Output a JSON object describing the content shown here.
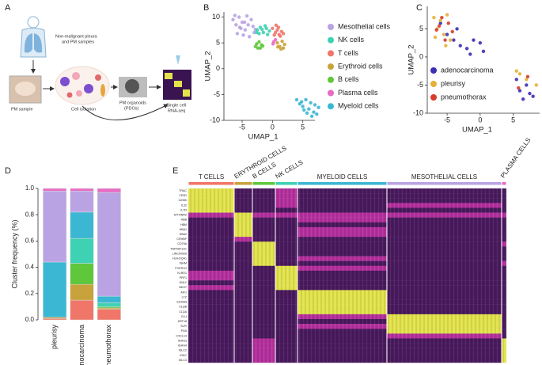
{
  "panel_labels": [
    "A",
    "B",
    "C",
    "D",
    "E"
  ],
  "schematic": {
    "source": [
      "Non-malignant pleura",
      "and PM samples"
    ],
    "sample": "PM sample",
    "isolation": "Cell isolation",
    "organoids": [
      "PM organoids",
      "(PDOs)"
    ],
    "sequencing": [
      "Single cell",
      "RNA-seq"
    ]
  },
  "chart_data": [
    {
      "type": "scatter",
      "x_label": "UMAP_1",
      "y_label": "UMAP_2",
      "xlim": [
        -8,
        7
      ],
      "ylim": [
        -10,
        11
      ],
      "xticks": [
        -5,
        0,
        5
      ],
      "yticks": [
        -10,
        -5,
        0,
        5,
        10
      ],
      "legend": "right",
      "series": [
        {
          "name": "Mesothelial cells",
          "color": "#b9a3e3",
          "x": [
            -6.5,
            -6,
            -5.5,
            -5,
            -4.5,
            -4,
            -3.5,
            -3,
            -5.8,
            -4.8,
            -4.2,
            -3.2,
            -5.2,
            -6.2,
            -2.8,
            -3.8,
            -4.6,
            -5.4
          ],
          "y": [
            9.5,
            8.5,
            10,
            9,
            7.5,
            8.5,
            9.5,
            7,
            6.8,
            6.5,
            10.2,
            8.2,
            7.8,
            10.3,
            7.6,
            6.2,
            9,
            8
          ]
        },
        {
          "name": "NK cells",
          "color": "#3fd1b3",
          "x": [
            -2.5,
            -2,
            -1.5,
            -1,
            -0.5,
            -2.2,
            -1.2,
            -0.8,
            -1.7,
            -2.6
          ],
          "y": [
            7.5,
            8,
            7,
            7.8,
            7.3,
            6.8,
            8.3,
            6.6,
            7.6,
            7
          ]
        },
        {
          "name": "T cells",
          "color": "#f0766a",
          "x": [
            0,
            0.5,
            1,
            1.5,
            0.3,
            0.8,
            1.3,
            1.8,
            0.6,
            1.1
          ],
          "y": [
            7.8,
            7,
            8,
            7.2,
            6.5,
            7.5,
            6.3,
            6.8,
            8.4,
            6.6
          ]
        },
        {
          "name": "Erythroid cells",
          "color": "#c8a23a",
          "x": [
            0.8,
            1.2,
            1.6,
            2,
            1.4,
            0.9,
            1.8
          ],
          "y": [
            5,
            4.3,
            5.3,
            4.7,
            3.8,
            4.2,
            4
          ]
        },
        {
          "name": "B cells",
          "color": "#5ec73c",
          "x": [
            -2.6,
            -2.2,
            -1.8,
            -2.4,
            -2,
            -1.6,
            -2.8
          ],
          "y": [
            4.8,
            5.2,
            4.6,
            4,
            4,
            4.4,
            4.3
          ]
        },
        {
          "name": "Plasma cells",
          "color": "#e86bc4",
          "x": [
            0.2,
            0.5,
            0.1
          ],
          "y": [
            5.2,
            5.6,
            4.8
          ]
        },
        {
          "name": "Myeloid cells",
          "color": "#3bb7d4",
          "x": [
            4,
            4.8,
            5.5,
            6.3,
            7,
            7.6,
            5,
            6,
            6.8,
            4.5,
            5.7,
            7.3,
            6.5,
            5.2
          ],
          "y": [
            -6,
            -6.4,
            -6,
            -6.6,
            -7,
            -7.5,
            -7.3,
            -7.8,
            -8.4,
            -6.8,
            -8.6,
            -8.8,
            -9.2,
            -8
          ]
        }
      ]
    },
    {
      "type": "scatter",
      "x_label": "UMAP_1",
      "y_label": "UMAP_2",
      "xlim": [
        -8,
        9
      ],
      "ylim": [
        -10,
        9
      ],
      "xticks": [
        -5,
        0,
        5
      ],
      "yticks": [
        -10,
        -5,
        0,
        5
      ],
      "legend": "lower left",
      "series": [
        {
          "name": "adenocarcinoma",
          "color": "#3b2fb3",
          "x": [
            -5,
            -4,
            -3,
            -2,
            -1,
            0,
            0.5,
            -1.5,
            -3.5,
            -6,
            6,
            7,
            8,
            6.5,
            7.5,
            5.5
          ],
          "y": [
            4,
            3,
            2,
            1.5,
            3,
            2.5,
            1,
            0.5,
            5,
            6,
            -6,
            -5,
            -7,
            -7.5,
            -6.5,
            -4
          ]
        },
        {
          "name": "pleurisy",
          "color": "#e5b03a",
          "x": [
            -7,
            -6.5,
            -6,
            -5.5,
            -5,
            -4.5,
            -6.8,
            -5.2,
            6,
            7,
            8.5,
            5.5
          ],
          "y": [
            7,
            5,
            6.5,
            4,
            7.5,
            3,
            3.5,
            2,
            -3,
            -4,
            -5,
            -2.5
          ]
        },
        {
          "name": "pneumothorax",
          "color": "#d93a2a",
          "x": [
            -6.2,
            -5.8,
            -4.8,
            -4.2,
            -6.6,
            -5.3,
            5.8,
            7.2
          ],
          "y": [
            5.5,
            7,
            6,
            4.5,
            4.8,
            3,
            -5.5,
            -3.5
          ]
        }
      ]
    },
    {
      "type": "stacked_bar",
      "y_label": "Cluster frequency (%)",
      "categories": [
        "pleurisy",
        "adenocarcinoma",
        "pneumothorax"
      ],
      "ylim": [
        0,
        1
      ],
      "yticks": [
        {
          "value": 0,
          "label": "0.0"
        },
        0.2,
        0.4,
        0.6,
        0.8,
        {
          "value": 1,
          "label": "1.0"
        }
      ],
      "series": [
        {
          "color": "#f0766a",
          "values": [
            0.01,
            0.15,
            0.08
          ]
        },
        {
          "color": "#c8a23a",
          "values": [
            0.01,
            0.12,
            0.01
          ]
        },
        {
          "color": "#5ec73c",
          "values": [
            0,
            0.16,
            0.01
          ]
        },
        {
          "color": "#3fd1b3",
          "values": [
            0,
            0.19,
            0.03
          ]
        },
        {
          "color": "#3bb7d4",
          "values": [
            0.42,
            0.2,
            0.05
          ]
        },
        {
          "color": "#b9a3e3",
          "values": [
            0.54,
            0.16,
            0.79
          ]
        },
        {
          "color": "#e86bc4",
          "values": [
            0.02,
            0.02,
            0.03
          ]
        }
      ]
    },
    {
      "type": "heatmap",
      "groups": [
        {
          "name": "T CELLS",
          "color": "#f0766a"
        },
        {
          "name": "ERYTHROID CELLS",
          "color": "#c8a23a"
        },
        {
          "name": "B CELLS",
          "color": "#5ec73c"
        },
        {
          "name": "NK CELLS",
          "color": "#3fd1b3"
        },
        {
          "name": "MYELOID CELLS",
          "color": "#3bb7d4"
        },
        {
          "name": "MESOTHELIAL CELLS",
          "color": "#b9a3e3"
        },
        {
          "name": "PLASMA CELLS",
          "color": "#e86bc4"
        }
      ],
      "genes": [
        "TRAC",
        "CD3D",
        "GZMK",
        "IL32",
        "IL7R",
        "MT-RNR2",
        "HBB",
        "HBM",
        "HBA1",
        "HBA2",
        "CRHBP",
        "CD79A",
        "TNFRSF13C",
        "LINC00926",
        "HLA-DQA1",
        "IGHM",
        "FCER1G",
        "KLRD1",
        "PRF1",
        "GNLY",
        "NKG7",
        "AIF1",
        "LYZ",
        "S100A9",
        "C1QB",
        "C1QA",
        "CLU",
        "KRT18",
        "SLPI",
        "PI16",
        "CXCL14",
        "IGHG3",
        "IGHG4",
        "IGLC2",
        "IGKC",
        "IGLC3"
      ],
      "colors": [
        "#4a1a5e",
        "#b5309e",
        "#e3e34d"
      ],
      "values": [
        [
          2,
          0,
          0,
          1,
          0,
          0,
          0
        ],
        [
          2,
          0,
          0,
          1,
          0,
          0,
          0
        ],
        [
          2,
          0,
          0,
          1,
          0,
          0,
          0
        ],
        [
          2,
          0,
          0,
          1,
          0,
          1,
          0
        ],
        [
          2,
          0,
          0,
          0,
          0,
          0,
          0
        ],
        [
          1,
          2,
          1,
          1,
          1,
          1,
          1
        ],
        [
          0,
          2,
          0,
          0,
          1,
          0,
          0
        ],
        [
          0,
          2,
          0,
          0,
          0,
          0,
          0
        ],
        [
          0,
          2,
          0,
          0,
          1,
          0,
          0
        ],
        [
          0,
          2,
          0,
          0,
          1,
          0,
          0
        ],
        [
          0,
          1,
          0,
          0,
          0,
          0,
          0
        ],
        [
          0,
          0,
          2,
          0,
          0,
          0,
          1
        ],
        [
          0,
          0,
          2,
          0,
          0,
          0,
          0
        ],
        [
          0,
          0,
          2,
          0,
          0,
          0,
          0
        ],
        [
          0,
          0,
          2,
          0,
          1,
          0,
          0
        ],
        [
          0,
          0,
          2,
          0,
          0,
          0,
          1
        ],
        [
          0,
          0,
          0,
          2,
          1,
          0,
          0
        ],
        [
          1,
          0,
          0,
          2,
          0,
          0,
          0
        ],
        [
          1,
          0,
          0,
          2,
          0,
          0,
          0
        ],
        [
          0,
          0,
          0,
          2,
          0,
          0,
          0
        ],
        [
          1,
          0,
          0,
          2,
          0,
          0,
          0
        ],
        [
          0,
          0,
          0,
          0,
          2,
          0,
          0
        ],
        [
          0,
          0,
          0,
          0,
          2,
          0,
          0
        ],
        [
          0,
          0,
          0,
          0,
          2,
          0,
          0
        ],
        [
          0,
          0,
          0,
          0,
          2,
          0,
          0
        ],
        [
          0,
          0,
          0,
          0,
          2,
          0,
          0
        ],
        [
          0,
          0,
          0,
          0,
          1,
          2,
          0
        ],
        [
          0,
          0,
          0,
          0,
          0,
          2,
          0
        ],
        [
          0,
          0,
          0,
          0,
          1,
          2,
          0
        ],
        [
          0,
          0,
          0,
          0,
          0,
          2,
          0
        ],
        [
          0,
          0,
          0,
          0,
          0,
          1,
          0
        ],
        [
          0,
          0,
          1,
          0,
          0,
          0,
          2
        ],
        [
          0,
          0,
          1,
          0,
          0,
          0,
          2
        ],
        [
          0,
          0,
          1,
          0,
          0,
          0,
          2
        ],
        [
          0,
          0,
          1,
          0,
          0,
          0,
          2
        ],
        [
          0,
          0,
          1,
          0,
          0,
          0,
          2
        ]
      ]
    }
  ]
}
